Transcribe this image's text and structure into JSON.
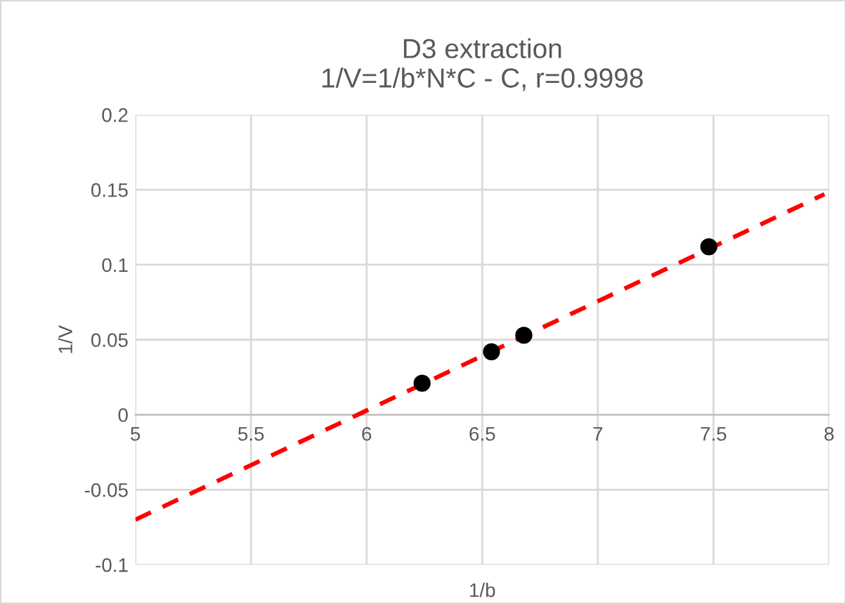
{
  "chart_data": {
    "type": "scatter",
    "title": "D3 extraction\n1/V=1/b*N*C - C, r=0.9998",
    "xlabel": "1/b",
    "ylabel": "1/V",
    "xlim": [
      5,
      8
    ],
    "ylim": [
      -0.1,
      0.2
    ],
    "xticks": [
      5,
      5.5,
      6,
      6.5,
      7,
      7.5,
      8
    ],
    "yticks": [
      -0.1,
      -0.05,
      0,
      0.05,
      0.1,
      0.15,
      0.2
    ],
    "grid": true,
    "legend": false,
    "series": [
      {
        "color": "#000000",
        "marker": "circle",
        "x": [
          6.24,
          6.54,
          6.68,
          7.48
        ],
        "values": [
          0.021,
          0.042,
          0.053,
          0.112
        ]
      },
      {
        "type": "line",
        "color": "#ff0000",
        "line_style": "dashed",
        "marker": "none",
        "x": [
          5,
          7.98
        ],
        "values": [
          -0.07,
          0.147
        ]
      }
    ]
  }
}
